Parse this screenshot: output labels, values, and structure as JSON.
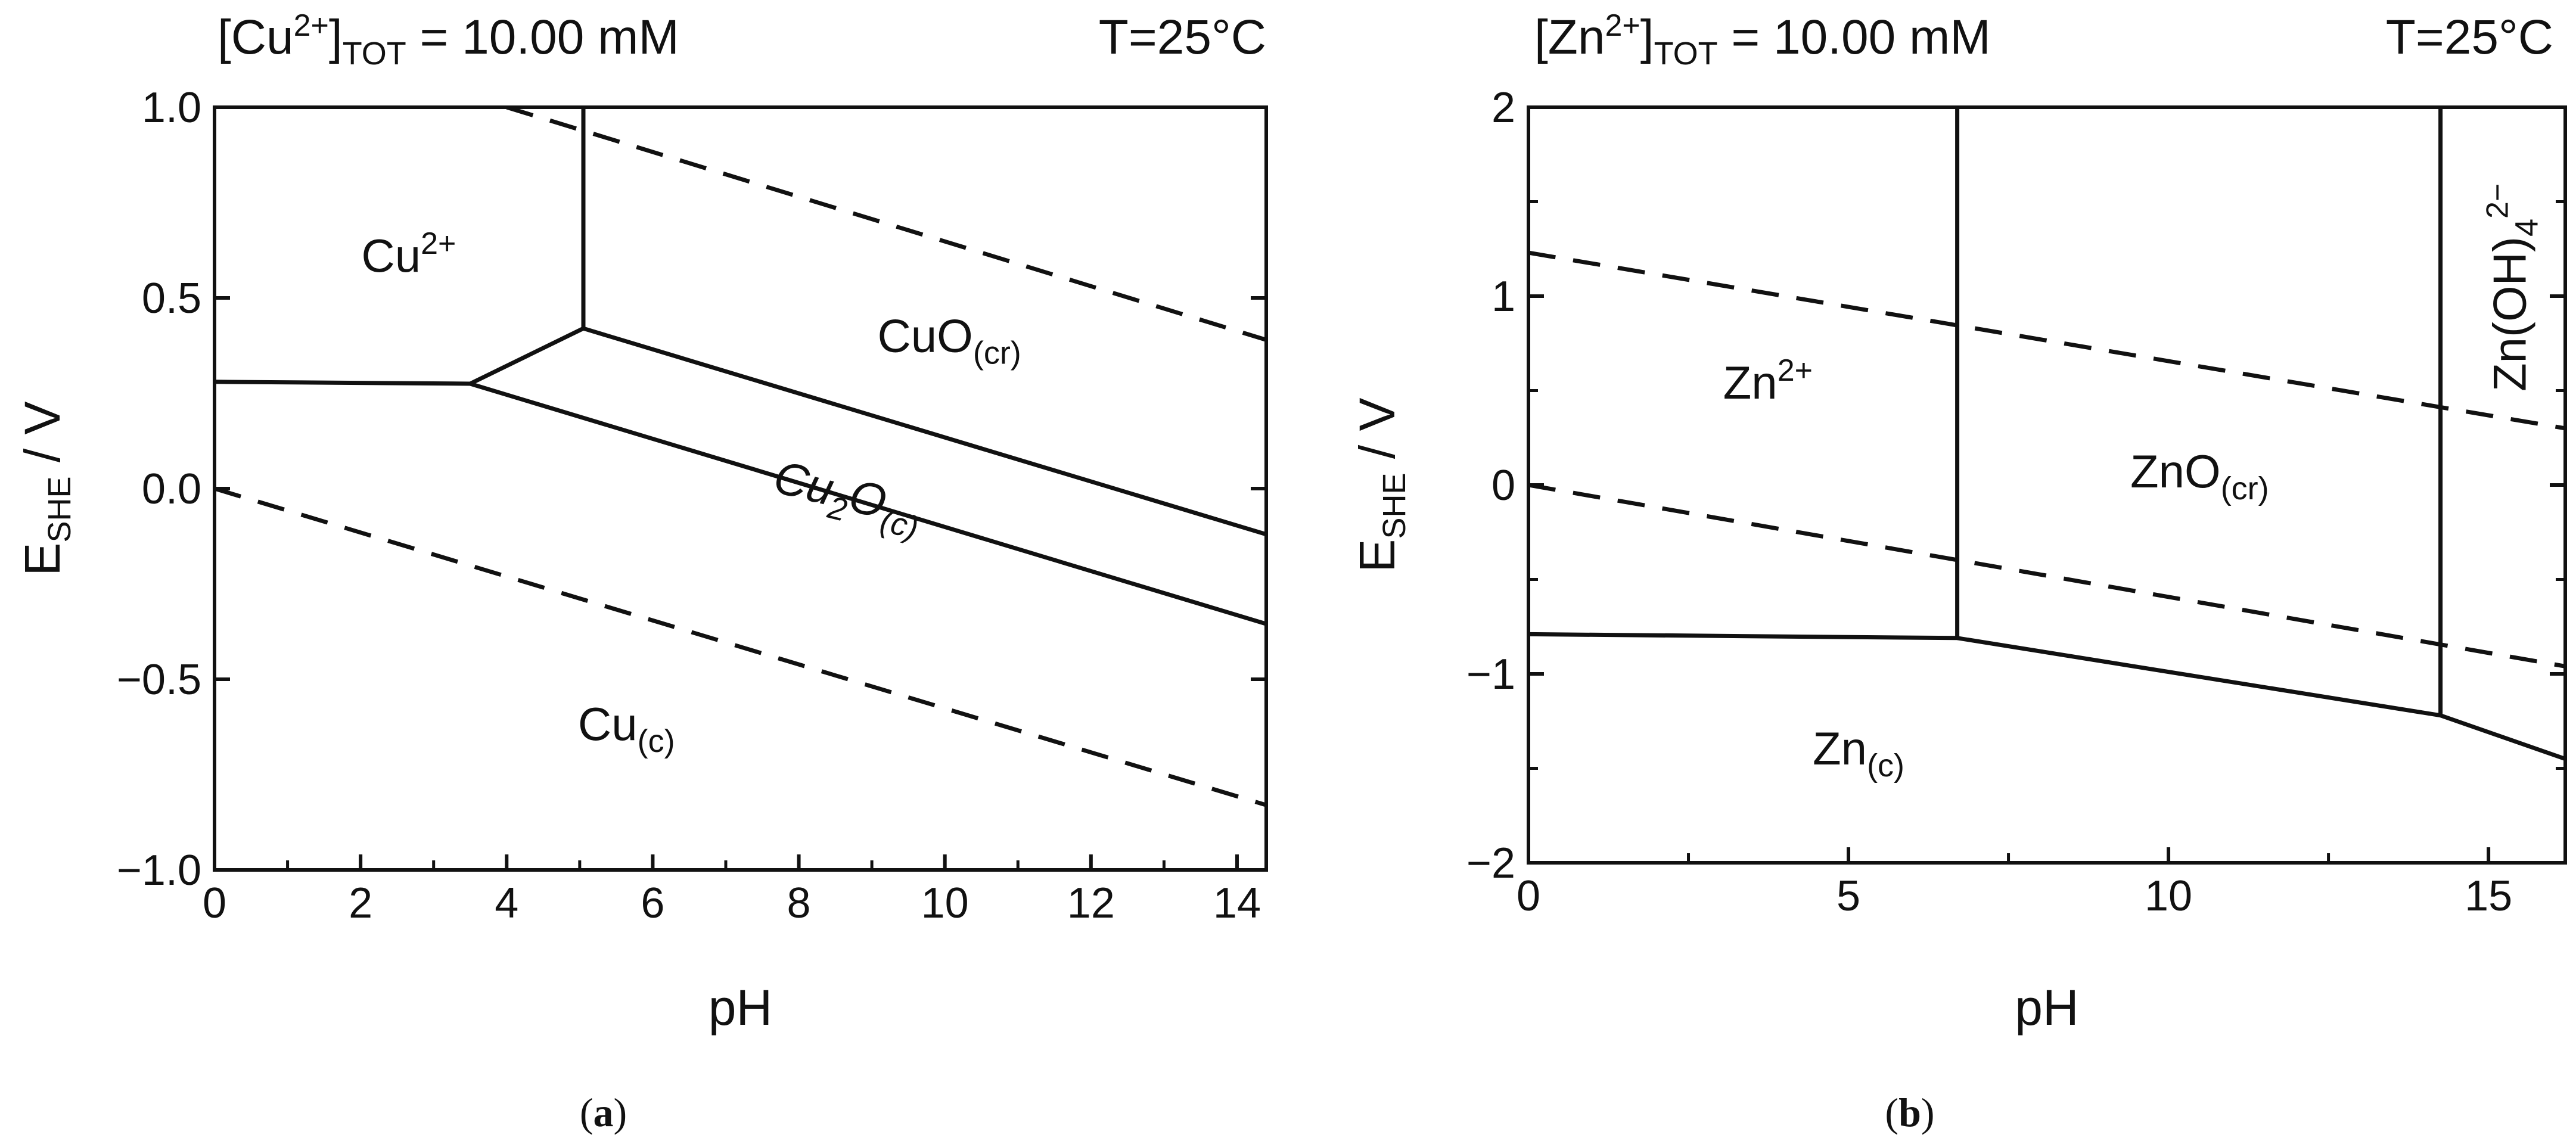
{
  "chart_data": [
    {
      "id": "a",
      "type": "line",
      "caption": "a",
      "title": {
        "main": "Cu",
        "sup": "2+",
        "sub": "TOT",
        "rest": " = 10.00 mM",
        "temperature": "T=25°C"
      },
      "xlabel": "pH",
      "ylabel": {
        "main": "E",
        "sub": "SHE",
        "rest": " / V"
      },
      "xlim": [
        0,
        14.4
      ],
      "ylim": [
        -1.0,
        1.0
      ],
      "xticks": [
        0,
        2,
        4,
        6,
        8,
        10,
        12,
        14
      ],
      "xtick_labels": [
        "0",
        "2",
        "4",
        "6",
        "8",
        "10",
        "12",
        "14"
      ],
      "minor_xticks": [
        1,
        3,
        5,
        7,
        9,
        11,
        13
      ],
      "yticks": [
        -1.0,
        -0.5,
        0.0,
        0.5,
        1.0
      ],
      "ytick_labels": [
        "−1.0",
        "−0.5",
        "0.0",
        "0.5",
        "1.0"
      ],
      "series": [
        {
          "name": "Cu2+/Cu boundary",
          "style": "solid",
          "points": [
            [
              0,
              0.28
            ],
            [
              3.5,
              0.275
            ]
          ]
        },
        {
          "name": "Cu2O/Cu boundary",
          "style": "solid",
          "points": [
            [
              3.5,
              0.275
            ],
            [
              14.4,
              -0.355
            ]
          ]
        },
        {
          "name": "Cu2+/Cu2O boundary",
          "style": "solid",
          "points": [
            [
              3.5,
              0.275
            ],
            [
              5.05,
              0.42
            ]
          ]
        },
        {
          "name": "CuO/Cu2O boundary",
          "style": "solid",
          "points": [
            [
              5.05,
              0.42
            ],
            [
              14.4,
              -0.12
            ]
          ]
        },
        {
          "name": "Cu2+/CuO boundary",
          "style": "solid",
          "points": [
            [
              5.05,
              0.42
            ],
            [
              5.05,
              1.0
            ]
          ]
        },
        {
          "name": "O2/H2O line",
          "style": "dashed",
          "points": [
            [
              4.0,
              1.0
            ],
            [
              14.4,
              0.39
            ]
          ]
        },
        {
          "name": "H2O/H2 line",
          "style": "dashed",
          "points": [
            [
              0,
              0.0
            ],
            [
              14.4,
              -0.83
            ]
          ]
        }
      ],
      "regions": [
        {
          "label": "Cu",
          "sup": "2+",
          "sub": "",
          "italic": false,
          "x": 2.5,
          "y": 0.6
        },
        {
          "label": "CuO",
          "sup": "",
          "sub": "(cr)",
          "italic": false,
          "x": 10.3,
          "y": 0.39
        },
        {
          "label": "Cu",
          "sub2": "2",
          "rest": "O",
          "sub": "(c)",
          "italic": true,
          "rotate": true,
          "x": 9.5,
          "y": 0.04
        },
        {
          "label": "Cu",
          "sup": "",
          "sub": "(c)",
          "italic": false,
          "x": 6.2,
          "y": -0.62
        }
      ]
    },
    {
      "id": "b",
      "type": "line",
      "caption": "b",
      "title": {
        "main": "Zn",
        "sup": "2+",
        "sub": "TOT",
        "rest": " = 10.00 mM",
        "temperature": "T=25°C"
      },
      "xlabel": "pH",
      "ylabel": {
        "main": "E",
        "sub": "SHE",
        "rest": " / V"
      },
      "xlim": [
        0,
        16.2
      ],
      "ylim": [
        -2,
        2
      ],
      "xticks": [
        0,
        5,
        10,
        15
      ],
      "xtick_labels": [
        "0",
        "5",
        "10",
        "15"
      ],
      "minor_xticks": [
        2.5,
        7.5,
        12.5
      ],
      "yticks": [
        -2,
        -1,
        0,
        1,
        2
      ],
      "ytick_labels": [
        "−2",
        "−1",
        "0",
        "1",
        "2"
      ],
      "minor_yticks": [
        -1.5,
        -0.5,
        0.5,
        1.5
      ],
      "series": [
        {
          "name": "Zn2+/Zn boundary",
          "style": "solid",
          "points": [
            [
              0,
              -0.79
            ],
            [
              6.7,
              -0.81
            ]
          ]
        },
        {
          "name": "ZnO/Zn boundary",
          "style": "solid",
          "points": [
            [
              6.7,
              -0.81
            ],
            [
              14.25,
              -1.22
            ]
          ]
        },
        {
          "name": "Zn(OH)4 2-/Zn boundary",
          "style": "solid",
          "points": [
            [
              14.25,
              -1.22
            ],
            [
              16.2,
              -1.45
            ]
          ]
        },
        {
          "name": "Zn2+/ZnO boundary",
          "style": "solid",
          "points": [
            [
              6.7,
              -0.81
            ],
            [
              6.7,
              2.0
            ]
          ]
        },
        {
          "name": "ZnO/Zn(OH)4 2- boundary",
          "style": "solid",
          "points": [
            [
              14.25,
              -1.22
            ],
            [
              14.25,
              2.0
            ]
          ]
        },
        {
          "name": "O2/H2O line",
          "style": "dashed",
          "points": [
            [
              0,
              1.23
            ],
            [
              16.2,
              0.3
            ]
          ]
        },
        {
          "name": "H2O/H2 line",
          "style": "dashed",
          "points": [
            [
              0,
              0.0
            ],
            [
              16.2,
              -0.96
            ]
          ]
        }
      ],
      "regions": [
        {
          "label": "Zn",
          "sup": "2+",
          "sub": "",
          "italic": false,
          "x": 3.6,
          "y": 0.52
        },
        {
          "label": "ZnO",
          "sup": "",
          "sub": "(cr)",
          "italic": false,
          "x": 10.8,
          "y": 0.05
        },
        {
          "label": "Zn",
          "sup": "",
          "sub": "(c)",
          "italic": false,
          "x": 5.0,
          "y": -1.4
        },
        {
          "label": "Zn(OH)",
          "sub2": "4",
          "sup": "2−",
          "sub": "",
          "italic": false,
          "vertical": true,
          "x": 15.3,
          "y": 1.0
        }
      ]
    }
  ]
}
